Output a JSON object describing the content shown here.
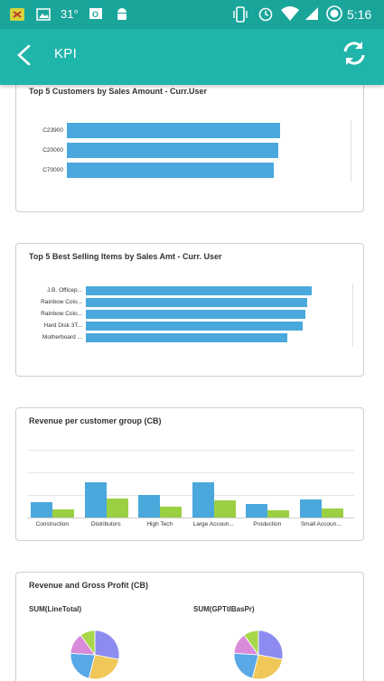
{
  "status_bar": {
    "temperature": "31°",
    "time": "5:16"
  },
  "app_bar": {
    "title": "KPI",
    "back_icon": "back-arrow-icon",
    "refresh_icon": "refresh-icon"
  },
  "colors": {
    "app_bar": "#20b5aa",
    "status_bar": "#1aa59b",
    "bar_blue": "#4aa8dc",
    "bar_green": "#9bd043"
  },
  "cards": [
    {
      "title": "Top 5 Customers by Sales Amount - Curr.User"
    },
    {
      "title": "Top 5 Best Selling Items by Sales Amt - Curr. User"
    },
    {
      "title": "Revenue per customer group (CB)"
    },
    {
      "title": "Revenue and Gross Profit (CB)"
    }
  ],
  "chart_data": [
    {
      "type": "bar",
      "orientation": "horizontal",
      "title": "Top 5 Customers by Sales Amount - Curr.User",
      "categories": [
        "C23900",
        "C20000",
        "C70000"
      ],
      "values": [
        100,
        99,
        97
      ]
    },
    {
      "type": "bar",
      "orientation": "horizontal",
      "title": "Top 5 Best Selling Items by Sales Amt - Curr. User",
      "categories": [
        "J.B. Officep...",
        "Rainbow Colo...",
        "Rainbow Colo...",
        "Hard Disk 3T...",
        "Motherboard ..."
      ],
      "values": [
        100,
        98,
        97,
        96,
        89
      ]
    },
    {
      "type": "bar",
      "title": "Revenue per customer group (CB)",
      "categories": [
        "Construction",
        "Distributors",
        "High Tech",
        "Large Accoun...",
        "Production",
        "Small Accoun..."
      ],
      "series": [
        {
          "values": [
            17,
            40,
            25,
            40,
            15,
            20
          ]
        },
        {
          "values": [
            9,
            21,
            12,
            19,
            8,
            10
          ]
        }
      ],
      "ylim": [
        0,
        76
      ]
    },
    {
      "type": "pie",
      "title": "Revenue and Gross Profit (CB)",
      "pies": [
        {
          "label": "SUM(LineTotal)",
          "values": [
            28,
            26,
            22,
            14,
            10
          ],
          "colors": [
            "#8c8cf0",
            "#f0c85a",
            "#5aa8e6",
            "#d98ad9",
            "#a8d84a"
          ]
        },
        {
          "label": "SUM(GPTtlBasPr)",
          "values": [
            28,
            26,
            22,
            14,
            10
          ],
          "colors": [
            "#8c8cf0",
            "#f0c85a",
            "#5aa8e6",
            "#d98ad9",
            "#a8d84a"
          ]
        }
      ]
    }
  ]
}
